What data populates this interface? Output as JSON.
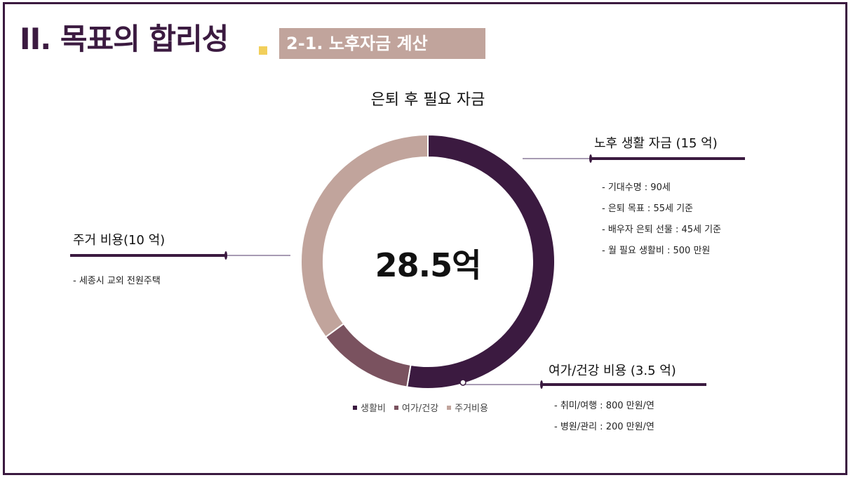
{
  "header": {
    "main_title": "II. 목표의 합리성",
    "section_tag": "2-1. 노후자금 계산"
  },
  "colors": {
    "brand": "#3b1a40",
    "accent": "#f2cf5b",
    "tag_bg": "#c1a49c"
  },
  "chart_data": {
    "type": "pie",
    "title": "은퇴 후 필요 자금",
    "center_label": "28.5억",
    "categories": [
      "생활비",
      "여가/건강",
      "주거비용"
    ],
    "values": [
      15,
      3.5,
      10
    ],
    "colors": [
      "#3b1a40",
      "#7a525f",
      "#c1a49c"
    ],
    "legend_position": "bottom"
  },
  "callouts": {
    "living": {
      "heading": "노후 생활 자금 (15 억)",
      "items": [
        "- 기대수명 : 90세",
        "- 은퇴 목표 : 55세 기준",
        "- 배우자 은퇴 선물 : 45세 기준",
        "- 월 필요 생활비 : 500 만원"
      ]
    },
    "housing": {
      "heading": "주거 비용(10 억)",
      "items": [
        "- 세종시 교외 전원주택"
      ]
    },
    "leisure": {
      "heading": "여가/건강 비용 (3.5 억)",
      "items": [
        "- 취미/여행 : 800 만원/연",
        "- 병원/관리 : 200 만원/연"
      ]
    }
  }
}
